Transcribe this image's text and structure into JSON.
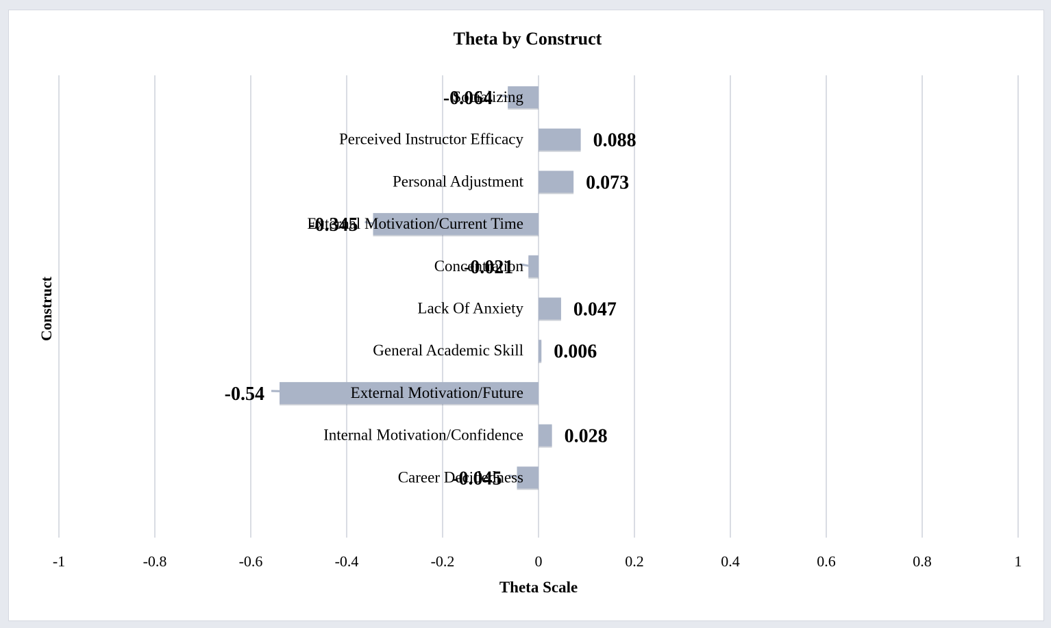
{
  "chart_data": {
    "type": "bar",
    "orientation": "horizontal",
    "title": "Theta by Construct",
    "xlabel": "Theta Scale",
    "ylabel": "Construct",
    "xlim": [
      -1,
      1
    ],
    "xticks": [
      -1,
      -0.8,
      -0.6,
      -0.4,
      -0.2,
      0,
      0.2,
      0.4,
      0.6,
      0.8,
      1
    ],
    "xtick_labels": [
      "-1",
      "-0.8",
      "-0.6",
      "-0.4",
      "-0.2",
      "0",
      "0.2",
      "0.4",
      "0.6",
      "0.8",
      "1"
    ],
    "grid": "vertical",
    "legend": "none",
    "bar_color": "#aab4c7",
    "categories": [
      "Socializing",
      "Perceived Instructor Efficacy",
      "Personal Adjustment",
      "External Motivation/Current Time",
      "Concentration",
      "Lack Of Anxiety",
      "General Academic Skill",
      "External Motivation/Future",
      "Internal Motivation/Confidence",
      "Career Decidedness"
    ],
    "values": [
      -0.064,
      0.088,
      0.073,
      -0.345,
      -0.021,
      0.047,
      0.006,
      -0.54,
      0.028,
      -0.045
    ],
    "value_labels": [
      "-0.064",
      "0.088",
      "0.073",
      "-0.345",
      "-0.021",
      "0.047",
      "0.006",
      "-0.54",
      "0.028",
      "-0.045"
    ]
  }
}
